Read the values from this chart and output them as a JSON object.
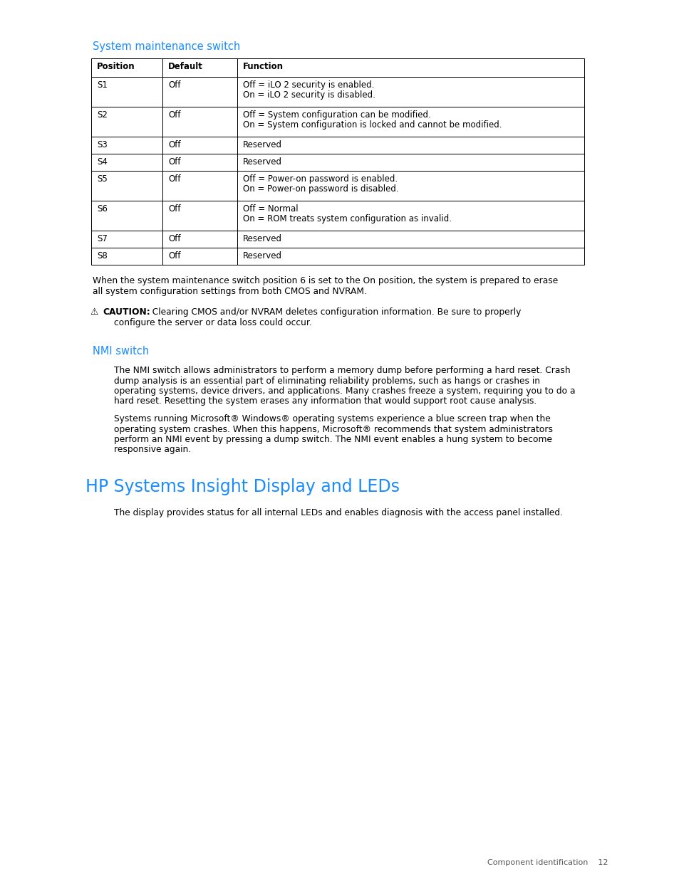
{
  "page_bg": "#ffffff",
  "section1_title": "System maintenance switch",
  "section1_color": "#1a8cff",
  "table_header": [
    "Position",
    "Default",
    "Function"
  ],
  "table_rows": [
    [
      "S1",
      "Off",
      "Off = iLO 2 security is enabled.\nOn = iLO 2 security is disabled."
    ],
    [
      "S2",
      "Off",
      "Off = System configuration can be modified.\nOn = System configuration is locked and cannot be modified."
    ],
    [
      "S3",
      "Off",
      "Reserved"
    ],
    [
      "S4",
      "Off",
      "Reserved"
    ],
    [
      "S5",
      "Off",
      "Off = Power-on password is enabled.\nOn = Power-on password is disabled."
    ],
    [
      "S6",
      "Off",
      "Off = Normal\nOn = ROM treats system configuration as invalid."
    ],
    [
      "S7",
      "Off",
      "Reserved"
    ],
    [
      "S8",
      "Off",
      "Reserved"
    ]
  ],
  "para1_line1": "When the system maintenance switch position 6 is set to the On position, the system is prepared to erase",
  "para1_line2": "all system configuration settings from both CMOS and NVRAM.",
  "caution_bold": "CAUTION:",
  "caution_rest": "  Clearing CMOS and/or NVRAM deletes configuration information. Be sure to properly",
  "caution_line2": "configure the server or data loss could occur.",
  "section2_title": "NMI switch",
  "section2_color": "#1a8cff",
  "nmi_para1_lines": [
    "The NMI switch allows administrators to perform a memory dump before performing a hard reset. Crash",
    "dump analysis is an essential part of eliminating reliability problems, such as hangs or crashes in",
    "operating systems, device drivers, and applications. Many crashes freeze a system, requiring you to do a",
    "hard reset. Resetting the system erases any information that would support root cause analysis."
  ],
  "nmi_para2_lines": [
    "Systems running Microsoft® Windows® operating systems experience a blue screen trap when the",
    "operating system crashes. When this happens, Microsoft® recommends that system administrators",
    "perform an NMI event by pressing a dump switch. The NMI event enables a hung system to become",
    "responsive again."
  ],
  "section3_title": "HP Systems Insight Display and LEDs",
  "section3_color": "#1a8cff",
  "hp_para1": "The display provides status for all internal LEDs and enables diagnosis with the access panel installed.",
  "footer_text": "Component identification    12",
  "font_size_body": 8.8,
  "font_size_section": 10.5,
  "font_size_h1": 17.0,
  "font_size_table": 8.5,
  "font_size_footer": 8.0
}
